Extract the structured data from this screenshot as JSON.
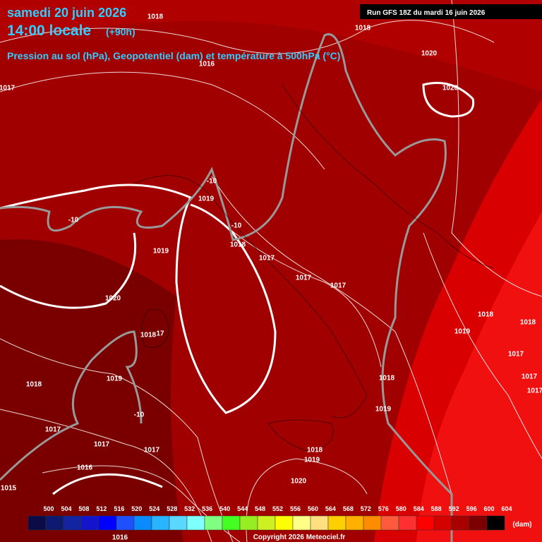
{
  "header": {
    "date": "samedi 20 juin 2026",
    "time": "14:00 locale",
    "lead": "(+90h)",
    "subtitle": "Pression au sol (hPa), Geopotentiel (dam) et température à 500hPa (°C)"
  },
  "run": "Run GFS 18Z du mardi 16 juin 2026",
  "isobar_labels": [
    "1018",
    "1018",
    "1020",
    "1016",
    "1017",
    "1020",
    "-10",
    "1019",
    "-10",
    "-10",
    "1019",
    "1018",
    "1017",
    "1017",
    "1017",
    "1020",
    "1018",
    "1018",
    "1019",
    "1018",
    "17",
    "1017",
    "1017",
    "1019",
    "1018",
    "1018",
    "1017",
    "1019",
    "-10",
    "1017",
    "1017",
    "1017",
    "1018",
    "1019",
    "1016",
    "1020",
    "1015",
    "1016"
  ],
  "legend": {
    "values": [
      500,
      504,
      508,
      512,
      516,
      520,
      524,
      528,
      532,
      536,
      540,
      544,
      548,
      552,
      556,
      560,
      564,
      568,
      572,
      576,
      580,
      584,
      588,
      592,
      596,
      600,
      604
    ],
    "colors": [
      "#0b0b48",
      "#0e1a70",
      "#1224a0",
      "#1414cc",
      "#0000ff",
      "#1e50ff",
      "#0a8cff",
      "#28b4ff",
      "#5ad8ff",
      "#80ffff",
      "#80ff80",
      "#44ff22",
      "#96ee22",
      "#ccf022",
      "#ffff00",
      "#ffff88",
      "#ffe080",
      "#ffd000",
      "#ffb000",
      "#ff8c00",
      "#ff5a3c",
      "#ff3030",
      "#ff0000",
      "#d40000",
      "#a80000",
      "#7c0000",
      "#000000"
    ],
    "unit": "(dam)"
  },
  "copyright": "Copyright 2026 Meteociel.fr"
}
